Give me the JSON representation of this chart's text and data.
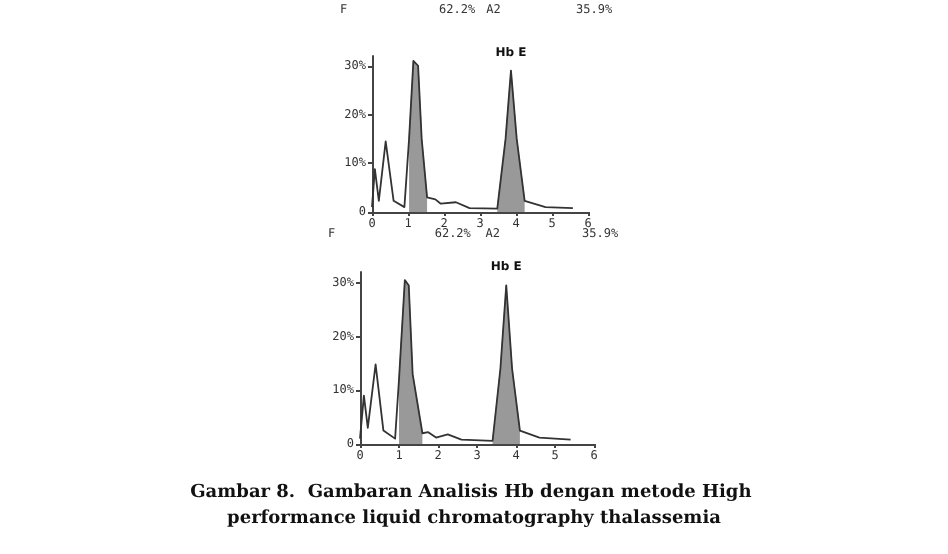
{
  "chart_data": [
    {
      "type": "line",
      "annotations": [
        "F",
        "62.2%",
        "A2",
        "35.9%",
        {
          "text": "Hb E",
          "x": 3.86,
          "y": 29
        }
      ],
      "xlim": [
        0,
        6
      ],
      "xticks": [
        0,
        1,
        2,
        3,
        4,
        5,
        6
      ],
      "ylim": [
        0,
        32
      ],
      "yticks": [
        0,
        {
          "value": 10,
          "label": "10%"
        },
        {
          "value": 20,
          "label": "20%"
        },
        {
          "value": 30,
          "label": "30%"
        }
      ],
      "marker": "none",
      "line_style": "solid",
      "grid": false,
      "series": [
        {
          "color": "#333333",
          "x": [
            0,
            0.08,
            0.19,
            0.38,
            0.6,
            0.9,
            1.03,
            1.15,
            1.28,
            1.38,
            1.53,
            1.76,
            1.91,
            2.33,
            2.71,
            3.48,
            3.71,
            3.86,
            4.02,
            4.24,
            4.82,
            5.58
          ],
          "values": [
            1,
            8.8,
            2.3,
            14.5,
            2.3,
            1,
            15,
            31,
            30,
            15,
            3,
            2.6,
            1.7,
            2,
            0.8,
            0.7,
            15,
            29,
            15,
            2.3,
            1,
            0.8
          ]
        },
        {
          "type": "area",
          "color": "#999999",
          "x": [
            1.03,
            1.15,
            1.28,
            1.38,
            1.53
          ],
          "values": [
            15,
            31,
            30,
            15,
            3
          ]
        },
        {
          "type": "area",
          "color": "#999999",
          "x": [
            3.48,
            3.71,
            3.86,
            4.02,
            4.24
          ],
          "values": [
            0.7,
            15,
            29,
            15,
            2.3
          ]
        }
      ]
    },
    {
      "type": "line",
      "title": "Gambar 8.  Gambaran Analisis Hb dengan metode High performance liquid chromatography thalassemia",
      "annotations": [
        "F",
        "62.2%",
        "A2",
        "35.9%",
        {
          "text": "Hb E",
          "x": 3.75,
          "y": 29.5
        }
      ],
      "xlim": [
        0,
        6
      ],
      "xticks": [
        0,
        1,
        2,
        3,
        4,
        5,
        6
      ],
      "ylim": [
        0,
        32
      ],
      "yticks": [
        0,
        {
          "value": 10,
          "label": "10%"
        },
        {
          "value": 20,
          "label": "20%"
        },
        {
          "value": 30,
          "label": "30%"
        }
      ],
      "marker": "none",
      "line_style": "solid",
      "grid": false,
      "series": [
        {
          "color": "#333333",
          "x": [
            0,
            0.1,
            0.2,
            0.4,
            0.6,
            0.9,
            1.0,
            1.15,
            1.25,
            1.35,
            1.6,
            1.75,
            1.95,
            2.25,
            2.6,
            3.4,
            3.6,
            3.75,
            3.9,
            4.1,
            4.6,
            5.4
          ],
          "values": [
            1,
            9,
            3,
            14.8,
            2.5,
            1,
            12,
            30.5,
            29.5,
            13,
            2,
            2.2,
            1.2,
            1.8,
            0.8,
            0.6,
            14,
            29.5,
            14,
            2.5,
            1.2,
            0.8
          ]
        },
        {
          "type": "area",
          "color": "#999999",
          "x": [
            1.0,
            1.15,
            1.25,
            1.35,
            1.6
          ],
          "values": [
            12,
            30.5,
            29.5,
            13,
            2
          ]
        },
        {
          "type": "area",
          "color": "#999999",
          "x": [
            3.4,
            3.6,
            3.75,
            3.9,
            4.1
          ],
          "values": [
            0.6,
            14,
            29.5,
            14,
            2.5
          ]
        }
      ]
    }
  ]
}
